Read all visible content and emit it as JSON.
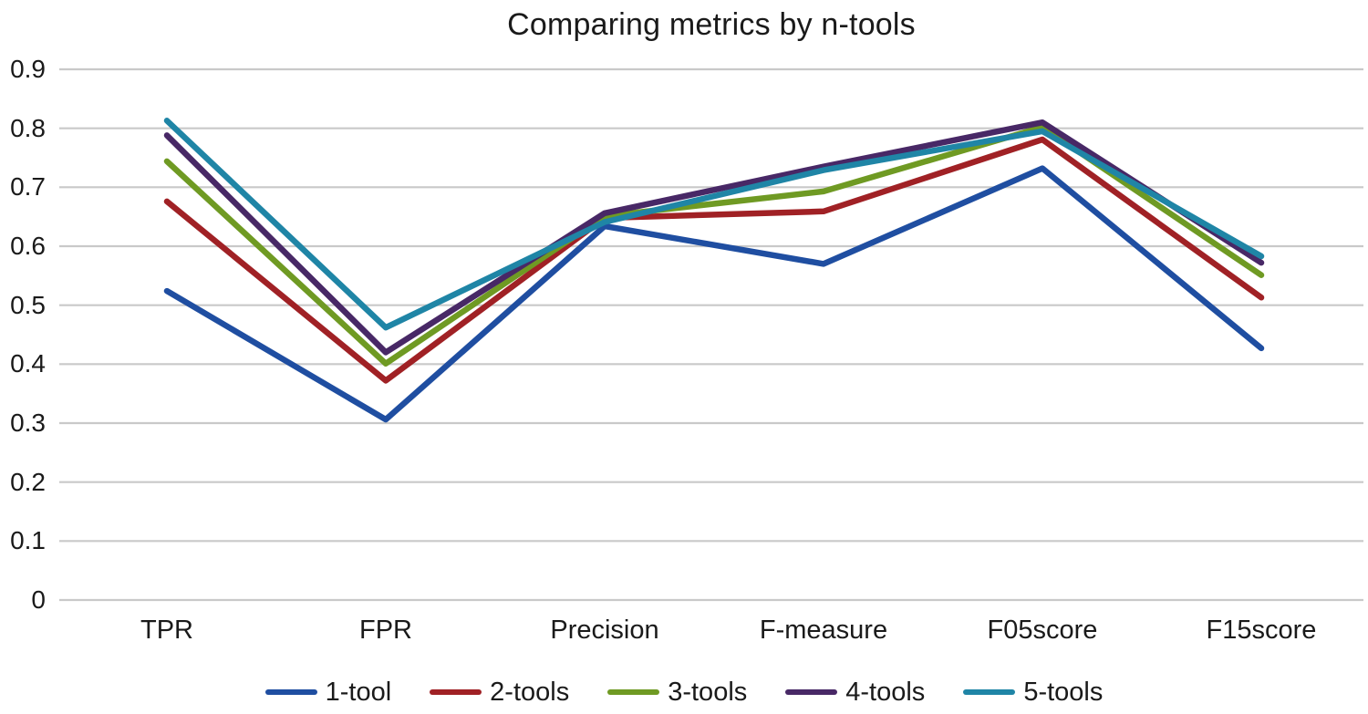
{
  "chart_data": {
    "type": "line",
    "title": "Comparing metrics by n-tools",
    "categories": [
      "TPR",
      "FPR",
      "Precision",
      "F-measure",
      "F05score",
      "F15score"
    ],
    "series": [
      {
        "name": "1-tool",
        "color": "#1F4EA1",
        "values": [
          0.524,
          0.306,
          0.634,
          0.57,
          0.732,
          0.427
        ]
      },
      {
        "name": "2-tools",
        "color": "#A02125",
        "values": [
          0.676,
          0.372,
          0.648,
          0.659,
          0.781,
          0.513
        ]
      },
      {
        "name": "3-tools",
        "color": "#6F9A23",
        "values": [
          0.744,
          0.401,
          0.651,
          0.693,
          0.802,
          0.551
        ]
      },
      {
        "name": "4-tools",
        "color": "#482866",
        "values": [
          0.788,
          0.42,
          0.656,
          0.735,
          0.81,
          0.572
        ]
      },
      {
        "name": "5-tools",
        "color": "#1F85A6",
        "values": [
          0.813,
          0.462,
          0.641,
          0.729,
          0.795,
          0.583
        ]
      }
    ],
    "y_axis": {
      "min": 0,
      "max": 0.9,
      "ticks": [
        0.9,
        0.8,
        0.7,
        0.6,
        0.5,
        0.4,
        0.3,
        0.2,
        0.1,
        0
      ],
      "tick_labels": [
        "0.9",
        "0.8",
        "0.7",
        "0.6",
        "0.5",
        "0.4",
        "0.3",
        "0.2",
        "0.1",
        "0"
      ]
    },
    "legend_position": "bottom",
    "grid": "horizontal",
    "gridline_color": "#C9C9C9"
  }
}
